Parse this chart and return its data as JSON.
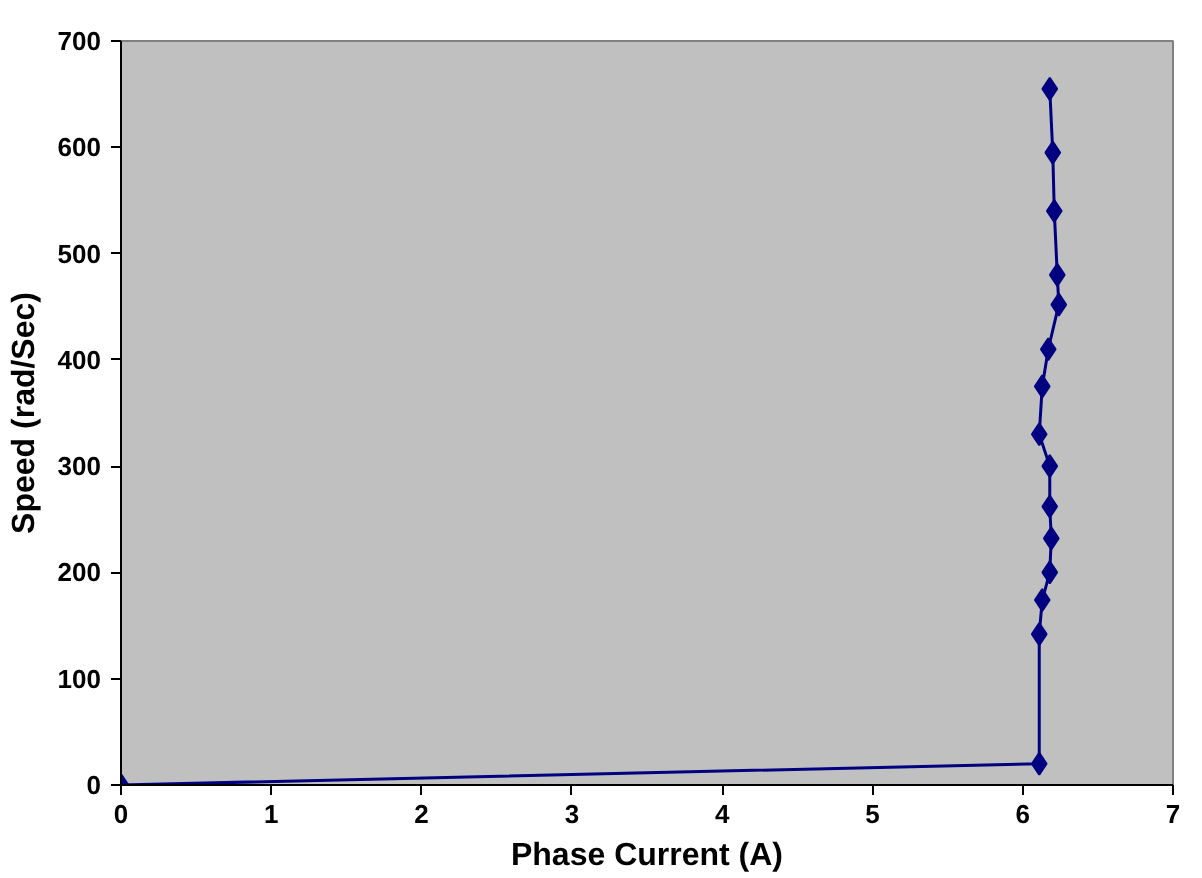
{
  "chart_data": {
    "type": "line",
    "xlabel": "Phase Current (A)",
    "ylabel": "Speed (rad/Sec)",
    "x": [
      0,
      6.11,
      6.11,
      6.13,
      6.18,
      6.19,
      6.18,
      6.18,
      6.11,
      6.13,
      6.17,
      6.24,
      6.23,
      6.21,
      6.2,
      6.18
    ],
    "series": [
      {
        "color": "#000080",
        "values": [
          0,
          20,
          142,
          174,
          200,
          232,
          262,
          300,
          330,
          375,
          410,
          452,
          480,
          540,
          595,
          655
        ]
      }
    ],
    "xlim": [
      0,
      7
    ],
    "ylim": [
      0,
      700
    ],
    "xticks": [
      0,
      1,
      2,
      3,
      4,
      5,
      6,
      7
    ],
    "yticks": [
      0,
      100,
      200,
      300,
      400,
      500,
      600,
      700
    ],
    "marker": "diamond",
    "grid": false
  }
}
